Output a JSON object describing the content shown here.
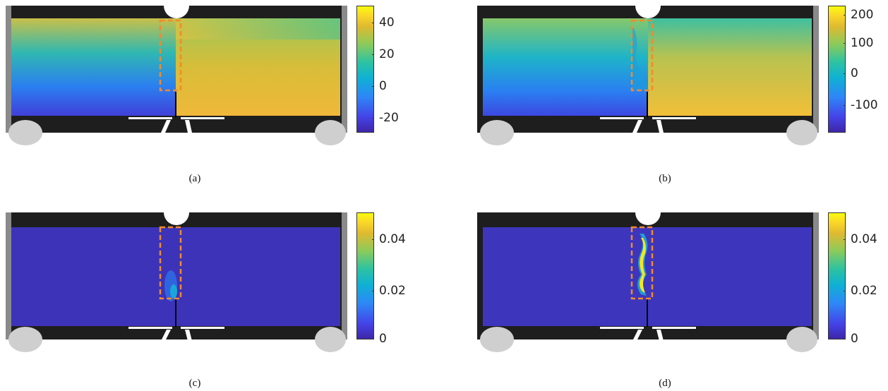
{
  "figure": {
    "panels": [
      {
        "caption": "(a)",
        "colorbar": {
          "ticks": [
            "40",
            "20",
            "0",
            "-20"
          ],
          "range": [
            -30,
            50
          ]
        },
        "field": "displacement-smooth"
      },
      {
        "caption": "(b)",
        "colorbar": {
          "ticks": [
            "200",
            "100",
            "0",
            "-100"
          ],
          "range": [
            -190,
            220
          ]
        },
        "field": "displacement-smooth-crack"
      },
      {
        "caption": "(c)",
        "colorbar": {
          "ticks": [
            "0.04",
            "0.02",
            "0"
          ],
          "range": [
            0,
            0.05
          ]
        },
        "field": "strain-weak"
      },
      {
        "caption": "(d)",
        "colorbar": {
          "ticks": [
            "0.04",
            "0.02",
            "0"
          ],
          "range": [
            0,
            0.05
          ]
        },
        "field": "strain-crack"
      }
    ],
    "colors": {
      "box_outline": "#f28a2c",
      "specimen_background": "#1e1e1e",
      "colormap": "parula"
    }
  }
}
